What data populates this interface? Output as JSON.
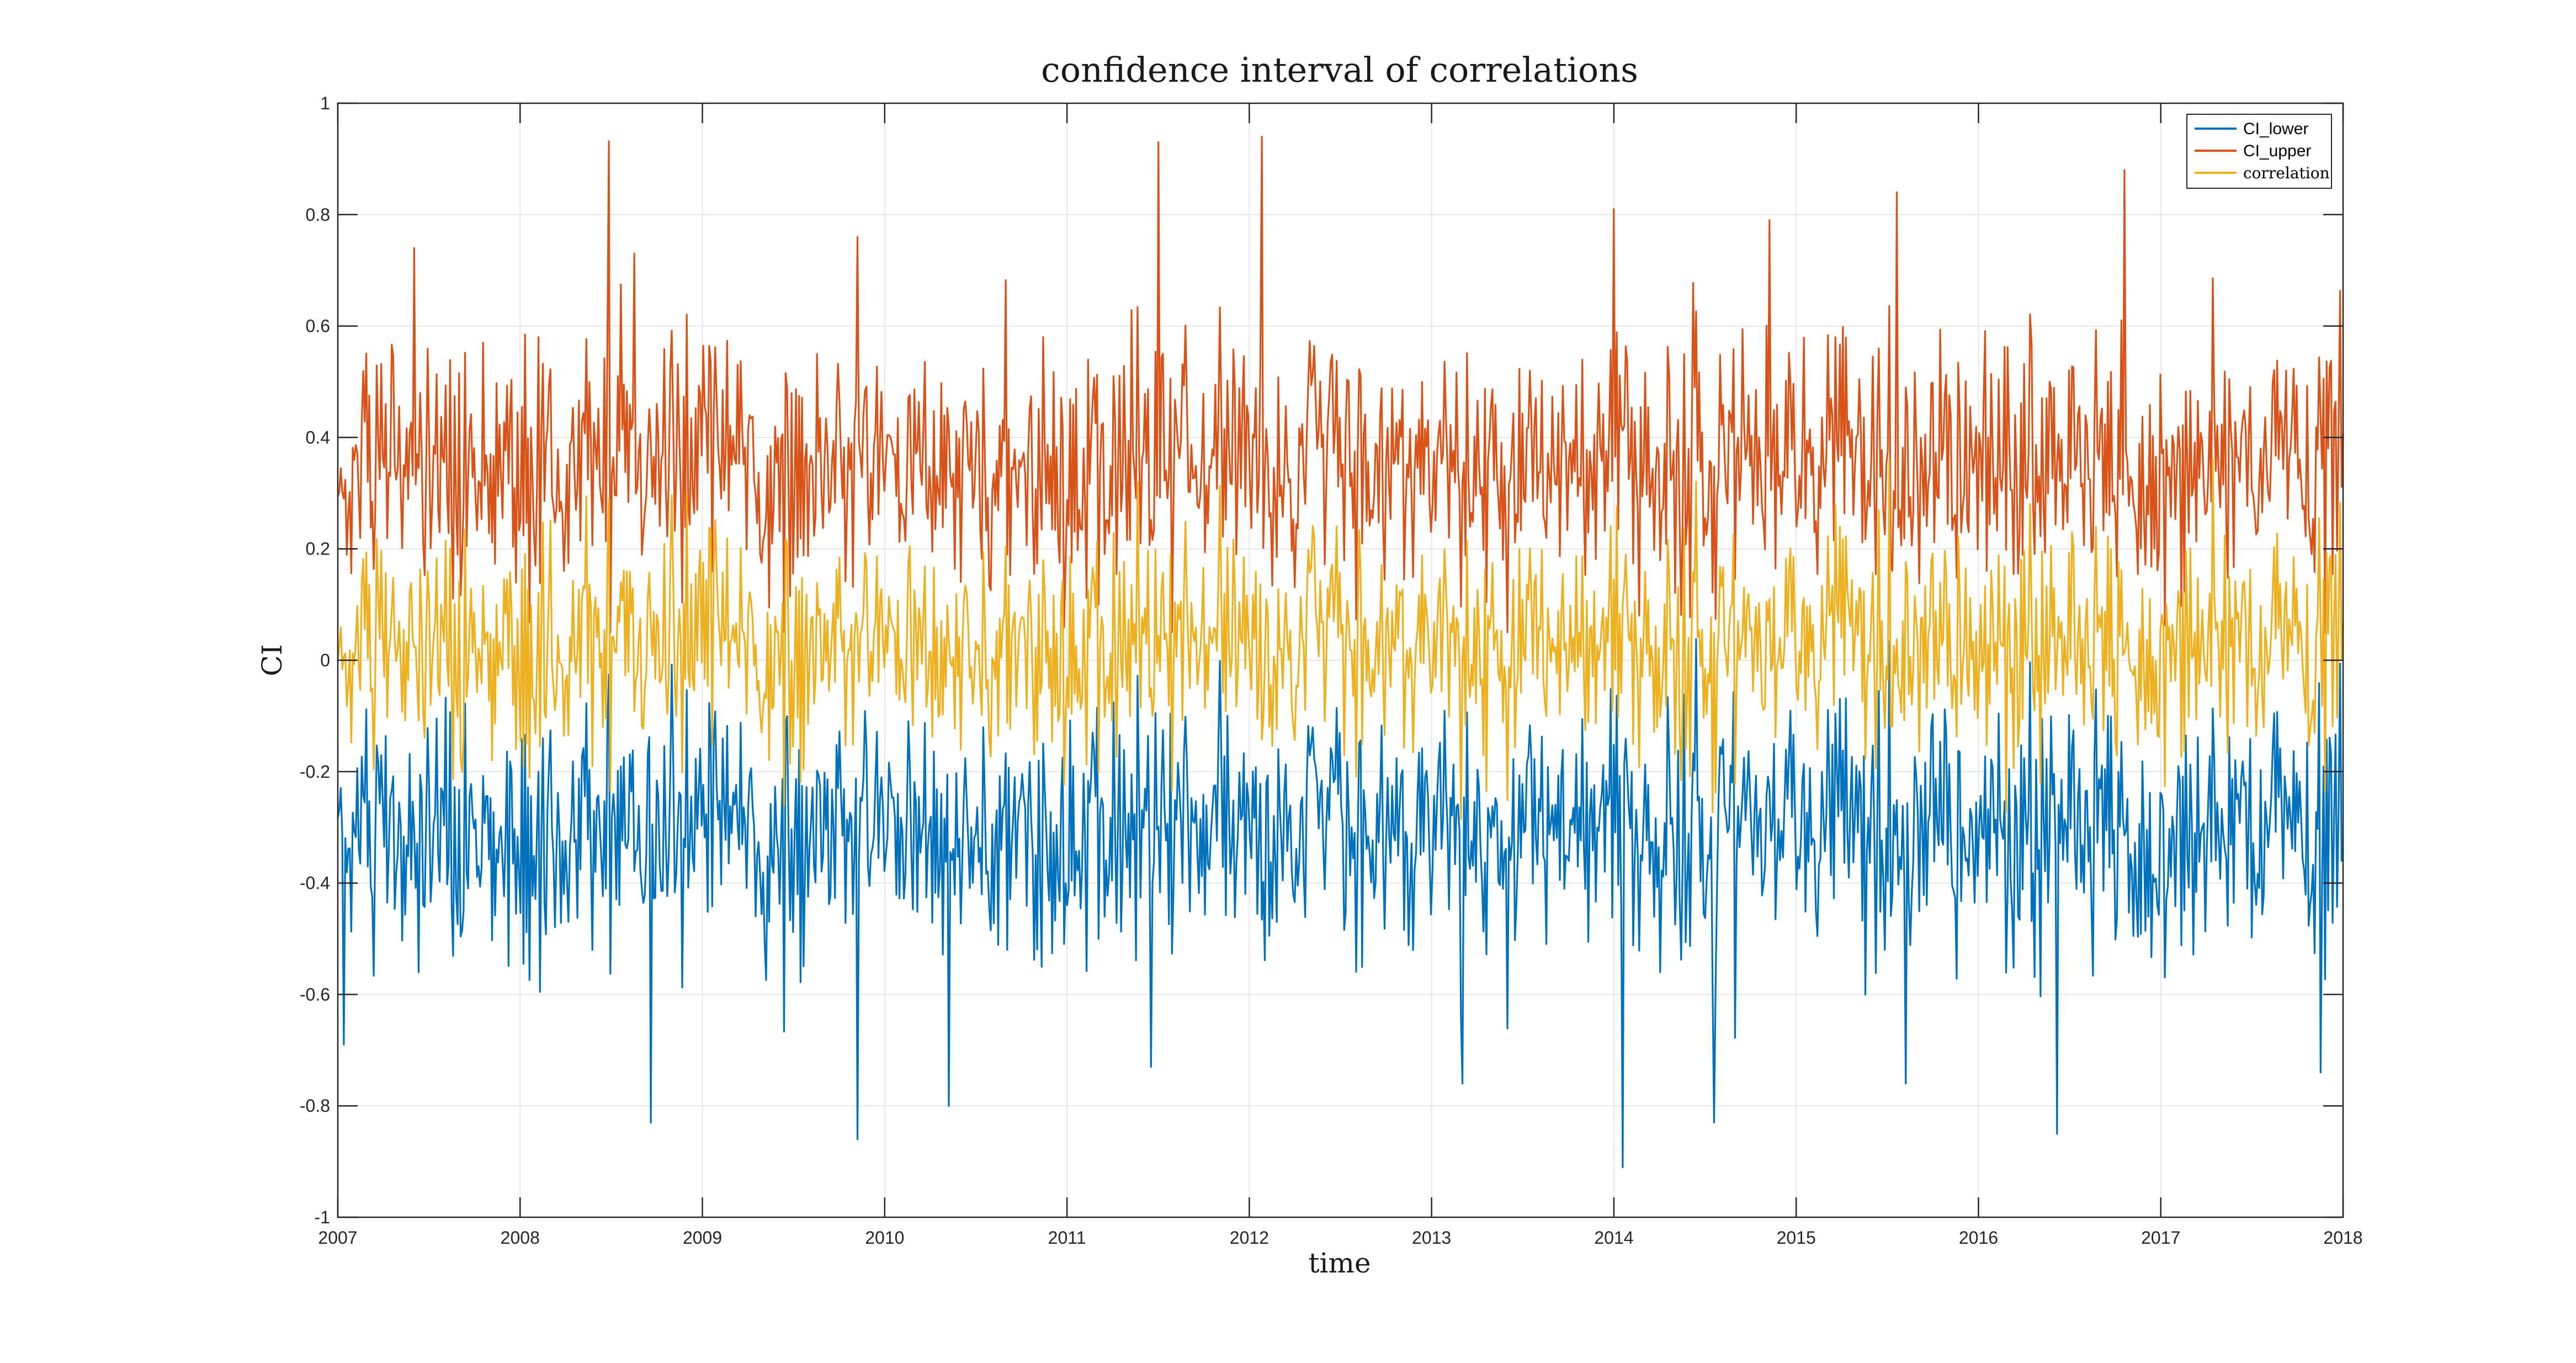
{
  "chart_data": {
    "type": "line",
    "title": "confidence interval of correlations",
    "xlabel": "time",
    "ylabel": "CI",
    "xlim": [
      2007,
      2018
    ],
    "ylim": [
      -1,
      1
    ],
    "x_ticks": [
      "2007",
      "2008",
      "2009",
      "2010",
      "2011",
      "2012",
      "2013",
      "2014",
      "2015",
      "2016",
      "2017",
      "2018"
    ],
    "x_tick_values": [
      2007,
      2008,
      2009,
      2010,
      2011,
      2012,
      2013,
      2014,
      2015,
      2016,
      2017,
      2018
    ],
    "y_ticks": [
      "-1",
      "-0.8",
      "-0.6",
      "-0.4",
      "-0.2",
      "0",
      "0.2",
      "0.4",
      "0.6",
      "0.8",
      "1"
    ],
    "y_tick_values": [
      -1,
      -0.8,
      -0.6,
      -0.4,
      -0.2,
      0,
      0.2,
      0.4,
      0.6,
      0.8,
      1
    ],
    "grid": true,
    "legend_position": "top-right",
    "series": [
      {
        "name": "CI_lower",
        "color": "#0072BD",
        "typical_mean": -0.27,
        "typical_spread": 0.09,
        "min": -0.91,
        "max": 0.15,
        "notable_points": [
          {
            "x": 2007.03,
            "y": -0.69
          },
          {
            "x": 2008.72,
            "y": -0.83
          },
          {
            "x": 2009.85,
            "y": -0.86
          },
          {
            "x": 2010.35,
            "y": -0.8
          },
          {
            "x": 2011.46,
            "y": -0.73
          },
          {
            "x": 2013.17,
            "y": -0.76
          },
          {
            "x": 2014.05,
            "y": -0.91
          },
          {
            "x": 2014.55,
            "y": -0.83
          },
          {
            "x": 2015.6,
            "y": -0.76
          },
          {
            "x": 2016.43,
            "y": -0.85
          },
          {
            "x": 2017.88,
            "y": -0.74
          }
        ]
      },
      {
        "name": "CI_upper",
        "color": "#D95319",
        "typical_mean": 0.3,
        "typical_spread": 0.1,
        "min": 0.05,
        "max": 0.94,
        "notable_points": [
          {
            "x": 2007.42,
            "y": 0.74
          },
          {
            "x": 2008.63,
            "y": 0.73
          },
          {
            "x": 2009.85,
            "y": 0.76
          },
          {
            "x": 2011.5,
            "y": 0.93
          },
          {
            "x": 2012.07,
            "y": 0.94
          },
          {
            "x": 2014.0,
            "y": 0.81
          },
          {
            "x": 2014.85,
            "y": 0.79
          },
          {
            "x": 2015.55,
            "y": 0.84
          },
          {
            "x": 2016.8,
            "y": 0.88
          }
        ]
      },
      {
        "name": "correlation",
        "color": "#EDB120",
        "typical_mean": 0.03,
        "typical_spread": 0.1,
        "min": -0.5,
        "max": 0.45,
        "notable_points": []
      }
    ]
  }
}
